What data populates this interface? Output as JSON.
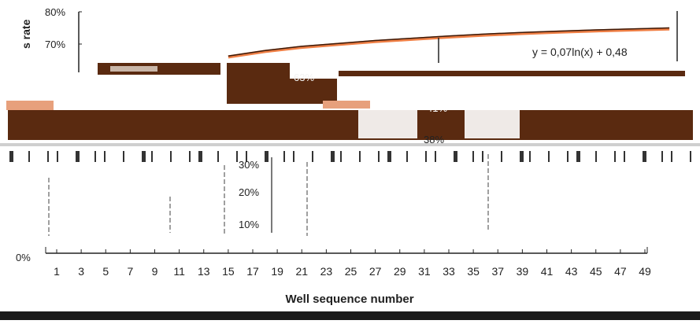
{
  "chart_data": {
    "type": "line",
    "title": "",
    "xlabel": "Well sequence number",
    "ylabel": "s rate",
    "x_ticks": [
      1,
      3,
      5,
      7,
      9,
      11,
      13,
      15,
      17,
      19,
      21,
      23,
      25,
      27,
      29,
      31,
      33,
      35,
      37,
      39,
      41,
      43,
      45,
      47,
      49
    ],
    "x_range": [
      0,
      51
    ],
    "y_ticks_top": [
      "80%",
      "70%"
    ],
    "y_ticks_lower": [
      "30%",
      "20%",
      "10%",
      "0%"
    ],
    "trendline_label": "y = 0,07ln(x) + 0,48",
    "percent_labels": [
      "63%",
      "41%",
      "38%"
    ],
    "series": [
      {
        "name": "",
        "color": "#ef7f45",
        "x": [
          15,
          18,
          21,
          24,
          27,
          30,
          33,
          36,
          39,
          42,
          45,
          48,
          51
        ],
        "y": [
          0.66,
          0.677,
          0.69,
          0.699,
          0.708,
          0.715,
          0.722,
          0.728,
          0.733,
          0.737,
          0.741,
          0.744,
          0.747
        ]
      },
      {
        "name": "",
        "color": "#3a1a0a",
        "x": [
          15,
          18,
          21,
          24,
          27,
          30,
          33,
          36,
          39,
          42,
          45,
          48,
          51
        ],
        "y": [
          0.663,
          0.68,
          0.693,
          0.702,
          0.711,
          0.718,
          0.725,
          0.731,
          0.736,
          0.74,
          0.744,
          0.747,
          0.75
        ]
      }
    ],
    "colors": {
      "band_dark": "#5a2a10",
      "band_light": "#e7a07c",
      "axis": "#222222",
      "background": "#ffffff"
    }
  }
}
